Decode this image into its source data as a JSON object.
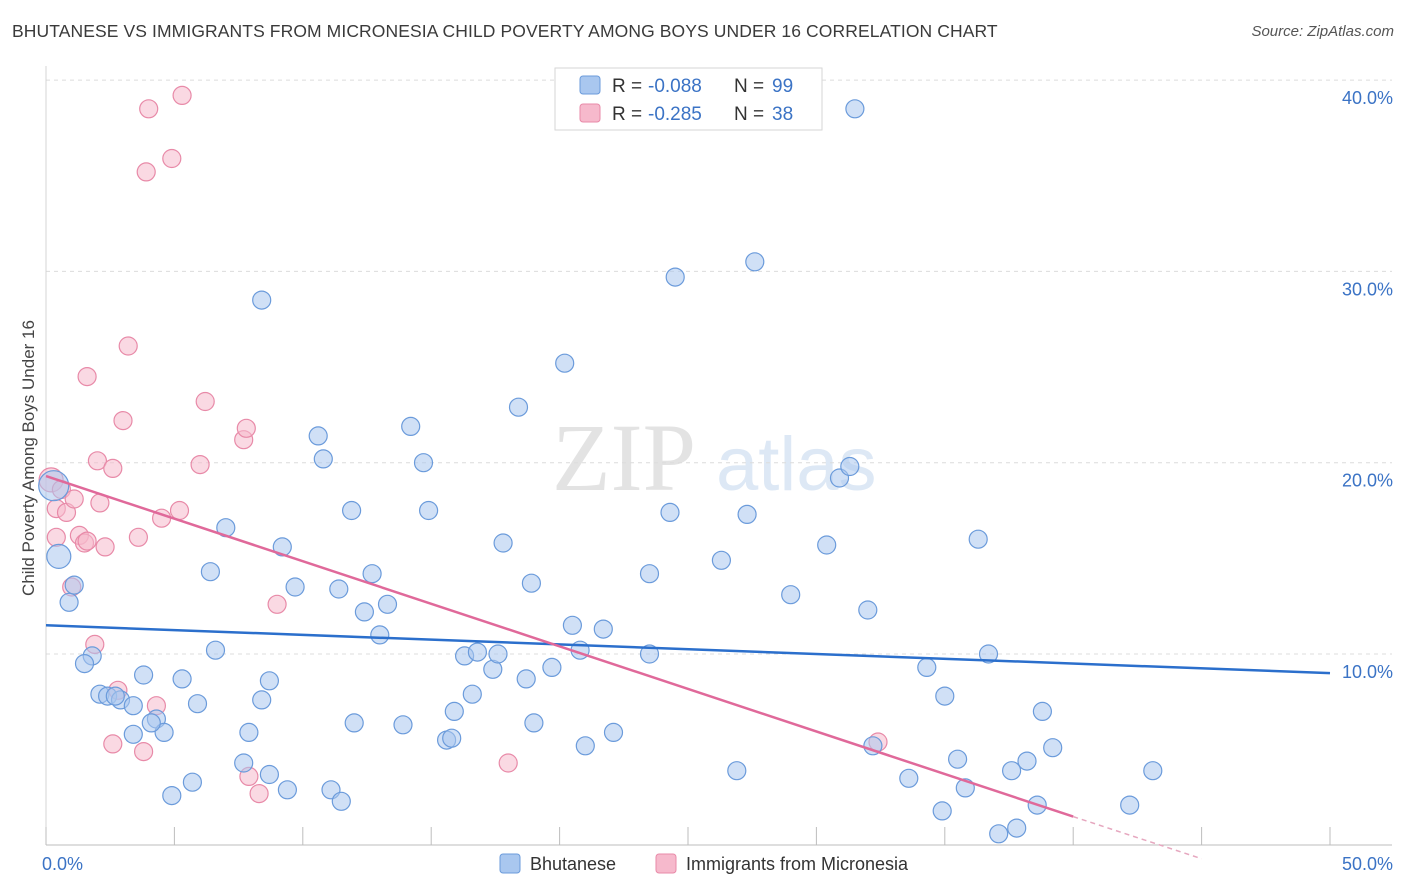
{
  "header": {
    "title": "BHUTANESE VS IMMIGRANTS FROM MICRONESIA CHILD POVERTY AMONG BOYS UNDER 16 CORRELATION CHART",
    "source": "Source: ZipAtlas.com"
  },
  "watermark": {
    "zip": "ZIP",
    "atlas": "atlas"
  },
  "legend_top": {
    "rows": [
      {
        "r_label": "R =",
        "r_value": "-0.088",
        "n_label": "N =",
        "n_value": "99"
      },
      {
        "r_label": "R =",
        "r_value": "-0.285",
        "n_label": "N =",
        "n_value": "38"
      }
    ]
  },
  "chart_data": {
    "type": "scatter",
    "title": "BHUTANESE VS IMMIGRANTS FROM MICRONESIA CHILD POVERTY AMONG BOYS UNDER 16 CORRELATION CHART",
    "xlabel": "",
    "ylabel": "Child Poverty Among Boys Under 16",
    "xlim": [
      0,
      50
    ],
    "ylim": [
      0,
      40
    ],
    "x_tick_labels": [
      "0.0%",
      "50.0%"
    ],
    "y_tick_values": [
      10,
      20,
      30,
      40
    ],
    "y_tick_labels": [
      "10.0%",
      "20.0%",
      "30.0%",
      "40.0%"
    ],
    "grid": true,
    "legend_position": "bottom-center",
    "colors": {
      "bhutanese_fill": "#a9c7ef",
      "bhutanese_stroke": "#6b9bdb",
      "bhutanese_line": "#2b6fcc",
      "micronesia_fill": "#f6b9cc",
      "micronesia_stroke": "#e88aa8",
      "micronesia_line": "#e0699a",
      "tick_text": "#3b73c5"
    },
    "series": [
      {
        "name": "Bhutanese",
        "r": -0.088,
        "n": 99,
        "trend": {
          "x": [
            0,
            50
          ],
          "y": [
            11.5,
            9.0
          ]
        },
        "points": [
          [
            0.3,
            18.8
          ],
          [
            0.5,
            15.1
          ],
          [
            1.1,
            13.6
          ],
          [
            0.9,
            12.7
          ],
          [
            1.8,
            9.9
          ],
          [
            1.5,
            9.5
          ],
          [
            2.1,
            7.9
          ],
          [
            2.4,
            7.8
          ],
          [
            2.9,
            7.6
          ],
          [
            3.4,
            7.3
          ],
          [
            3.8,
            8.9
          ],
          [
            4.3,
            6.6
          ],
          [
            3.4,
            5.8
          ],
          [
            4.6,
            5.9
          ],
          [
            5.3,
            8.7
          ],
          [
            5.9,
            7.4
          ],
          [
            6.4,
            14.3
          ],
          [
            7.0,
            16.6
          ],
          [
            6.6,
            10.2
          ],
          [
            5.7,
            3.3
          ],
          [
            4.9,
            2.6
          ],
          [
            7.7,
            4.3
          ],
          [
            7.9,
            5.9
          ],
          [
            8.4,
            7.6
          ],
          [
            8.7,
            8.6
          ],
          [
            8.7,
            3.7
          ],
          [
            9.4,
            2.9
          ],
          [
            9.2,
            15.6
          ],
          [
            9.7,
            13.5
          ],
          [
            10.6,
            21.4
          ],
          [
            10.8,
            20.2
          ],
          [
            11.4,
            13.4
          ],
          [
            11.1,
            2.9
          ],
          [
            11.5,
            2.3
          ],
          [
            11.9,
            17.5
          ],
          [
            12.0,
            6.4
          ],
          [
            12.4,
            12.2
          ],
          [
            12.7,
            14.2
          ],
          [
            13.0,
            11.0
          ],
          [
            13.3,
            12.6
          ],
          [
            13.9,
            6.3
          ],
          [
            14.2,
            21.9
          ],
          [
            14.7,
            20.0
          ],
          [
            14.9,
            17.5
          ],
          [
            15.6,
            5.5
          ],
          [
            15.8,
            5.6
          ],
          [
            15.9,
            7.0
          ],
          [
            16.3,
            9.9
          ],
          [
            16.6,
            7.9
          ],
          [
            16.8,
            10.1
          ],
          [
            17.4,
            9.2
          ],
          [
            17.6,
            10.0
          ],
          [
            17.8,
            15.8
          ],
          [
            18.4,
            22.9
          ],
          [
            18.7,
            8.7
          ],
          [
            18.9,
            13.7
          ],
          [
            19.0,
            6.4
          ],
          [
            19.7,
            9.3
          ],
          [
            20.2,
            25.2
          ],
          [
            20.5,
            11.5
          ],
          [
            20.8,
            10.2
          ],
          [
            21.0,
            5.2
          ],
          [
            21.7,
            11.3
          ],
          [
            22.1,
            5.9
          ],
          [
            23.5,
            10.0
          ],
          [
            23.5,
            14.2
          ],
          [
            24.3,
            17.4
          ],
          [
            24.5,
            29.7
          ],
          [
            26.3,
            14.9
          ],
          [
            26.9,
            3.9
          ],
          [
            27.3,
            17.3
          ],
          [
            27.6,
            30.5
          ],
          [
            29.0,
            13.1
          ],
          [
            30.4,
            15.7
          ],
          [
            30.9,
            19.2
          ],
          [
            31.3,
            19.8
          ],
          [
            31.5,
            38.5
          ],
          [
            32.0,
            12.3
          ],
          [
            32.2,
            5.2
          ],
          [
            33.6,
            3.5
          ],
          [
            34.3,
            9.3
          ],
          [
            35.0,
            7.8
          ],
          [
            34.9,
            1.8
          ],
          [
            35.5,
            4.5
          ],
          [
            35.8,
            3.0
          ],
          [
            36.3,
            16.0
          ],
          [
            36.7,
            10.0
          ],
          [
            37.1,
            0.6
          ],
          [
            37.6,
            3.9
          ],
          [
            37.8,
            0.9
          ],
          [
            38.2,
            4.4
          ],
          [
            38.6,
            2.1
          ],
          [
            38.8,
            7.0
          ],
          [
            39.2,
            5.1
          ],
          [
            42.2,
            2.1
          ],
          [
            43.1,
            3.9
          ],
          [
            4.1,
            6.4
          ],
          [
            2.7,
            7.8
          ],
          [
            8.4,
            28.5
          ]
        ]
      },
      {
        "name": "Immigrants from Micronesia",
        "r": -0.285,
        "n": 38,
        "trend": {
          "x": [
            0,
            40
          ],
          "y": [
            19.3,
            1.5
          ]
        },
        "trend_dashed_extension": {
          "x": [
            40,
            45
          ],
          "y": [
            1.5,
            -0.7
          ]
        },
        "points": [
          [
            0.2,
            19.1
          ],
          [
            0.4,
            17.6
          ],
          [
            0.4,
            16.1
          ],
          [
            0.6,
            18.6
          ],
          [
            0.8,
            17.4
          ],
          [
            1.0,
            13.5
          ],
          [
            1.1,
            18.1
          ],
          [
            1.3,
            16.2
          ],
          [
            1.5,
            15.8
          ],
          [
            1.6,
            15.9
          ],
          [
            1.6,
            24.5
          ],
          [
            1.9,
            10.5
          ],
          [
            2.0,
            20.1
          ],
          [
            2.1,
            17.9
          ],
          [
            2.3,
            15.6
          ],
          [
            2.6,
            19.7
          ],
          [
            2.6,
            5.3
          ],
          [
            2.8,
            8.1
          ],
          [
            3.0,
            22.2
          ],
          [
            3.2,
            26.1
          ],
          [
            3.6,
            16.1
          ],
          [
            3.8,
            4.9
          ],
          [
            3.9,
            35.2
          ],
          [
            4.0,
            38.5
          ],
          [
            4.3,
            7.3
          ],
          [
            4.5,
            17.1
          ],
          [
            4.9,
            35.9
          ],
          [
            5.2,
            17.5
          ],
          [
            5.3,
            39.2
          ],
          [
            6.0,
            19.9
          ],
          [
            6.2,
            23.2
          ],
          [
            7.7,
            21.2
          ],
          [
            7.8,
            21.8
          ],
          [
            7.9,
            3.6
          ],
          [
            8.3,
            2.7
          ],
          [
            9.0,
            12.6
          ],
          [
            18.0,
            4.3
          ],
          [
            32.4,
            5.4
          ]
        ]
      }
    ]
  },
  "legend_bottom": {
    "items": [
      {
        "label": "Bhutanese"
      },
      {
        "label": "Immigrants from Micronesia"
      }
    ]
  }
}
